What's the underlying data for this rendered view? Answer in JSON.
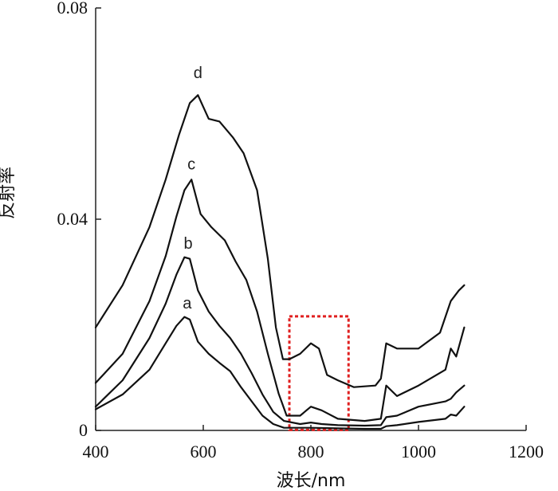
{
  "chart_data": {
    "type": "line",
    "xlabel": "波长/nm",
    "ylabel": "反射率",
    "xlim": [
      400,
      1200
    ],
    "ylim": [
      0,
      0.08
    ],
    "x_ticks": [
      400,
      600,
      800,
      1000,
      1200
    ],
    "x_tick_labels": [
      "400",
      "600",
      "800",
      "1000",
      "1200"
    ],
    "y_ticks": [
      0,
      0.04,
      0.08
    ],
    "y_tick_labels": [
      "0",
      "0.04",
      "0.08"
    ],
    "grid": false,
    "legend": "none",
    "line_color": "#111111",
    "highlight": {
      "x_range": [
        760,
        870
      ],
      "y_range": [
        0.0001,
        0.0216
      ],
      "color": "#e02020",
      "style": "dotted"
    },
    "series": [
      {
        "name": "a",
        "label_at": [
          570,
          0.0222
        ],
        "x": [
          400,
          450,
          500,
          530,
          550,
          565,
          575,
          590,
          610,
          630,
          650,
          670,
          690,
          710,
          730,
          750,
          800,
          850,
          900,
          930,
          940,
          960,
          1000,
          1050,
          1060,
          1070,
          1085
        ],
        "y": [
          0.004,
          0.0068,
          0.0115,
          0.0165,
          0.0198,
          0.0215,
          0.021,
          0.0168,
          0.0145,
          0.0128,
          0.0112,
          0.0082,
          0.0055,
          0.0028,
          0.0012,
          0.0005,
          0.0005,
          0.0004,
          0.0003,
          0.0003,
          0.0008,
          0.001,
          0.0016,
          0.0022,
          0.003,
          0.0028,
          0.0045
        ]
      },
      {
        "name": "b",
        "label_at": [
          572,
          0.0335
        ],
        "x": [
          400,
          450,
          500,
          530,
          550,
          565,
          575,
          590,
          610,
          630,
          650,
          670,
          690,
          710,
          730,
          750,
          780,
          800,
          820,
          850,
          900,
          930,
          940,
          960,
          1000,
          1050,
          1060,
          1070,
          1085
        ],
        "y": [
          0.0045,
          0.0095,
          0.0175,
          0.024,
          0.0295,
          0.0328,
          0.0325,
          0.0265,
          0.0225,
          0.0198,
          0.0175,
          0.0145,
          0.0108,
          0.0068,
          0.0035,
          0.0018,
          0.0012,
          0.0015,
          0.0012,
          0.001,
          0.0009,
          0.001,
          0.0025,
          0.0028,
          0.0045,
          0.0055,
          0.006,
          0.0072,
          0.0085
        ]
      },
      {
        "name": "c",
        "label_at": [
          578,
          0.0485
        ],
        "x": [
          400,
          450,
          500,
          530,
          550,
          565,
          578,
          595,
          615,
          640,
          660,
          680,
          700,
          720,
          740,
          755,
          780,
          800,
          820,
          850,
          900,
          930,
          940,
          960,
          1000,
          1050,
          1060,
          1070,
          1085
        ],
        "y": [
          0.009,
          0.0145,
          0.0245,
          0.033,
          0.0405,
          0.0455,
          0.0475,
          0.041,
          0.0385,
          0.036,
          0.032,
          0.0285,
          0.0225,
          0.0145,
          0.007,
          0.0028,
          0.0028,
          0.0045,
          0.0038,
          0.0022,
          0.0018,
          0.0022,
          0.0085,
          0.0065,
          0.0085,
          0.0115,
          0.0155,
          0.014,
          0.0195
        ]
      },
      {
        "name": "d",
        "label_at": [
          590,
          0.0658
        ],
        "x": [
          400,
          450,
          500,
          530,
          555,
          575,
          590,
          610,
          630,
          655,
          675,
          700,
          720,
          735,
          748,
          760,
          780,
          800,
          815,
          830,
          850,
          880,
          920,
          930,
          940,
          960,
          1000,
          1040,
          1060,
          1075,
          1085
        ],
        "y": [
          0.0195,
          0.0275,
          0.0385,
          0.0475,
          0.056,
          0.062,
          0.0635,
          0.059,
          0.0585,
          0.0555,
          0.0525,
          0.0455,
          0.0325,
          0.0195,
          0.0135,
          0.0135,
          0.0145,
          0.0165,
          0.0155,
          0.0105,
          0.0095,
          0.0082,
          0.0085,
          0.0098,
          0.0165,
          0.0155,
          0.0155,
          0.0185,
          0.0245,
          0.0265,
          0.0275
        ]
      }
    ]
  }
}
